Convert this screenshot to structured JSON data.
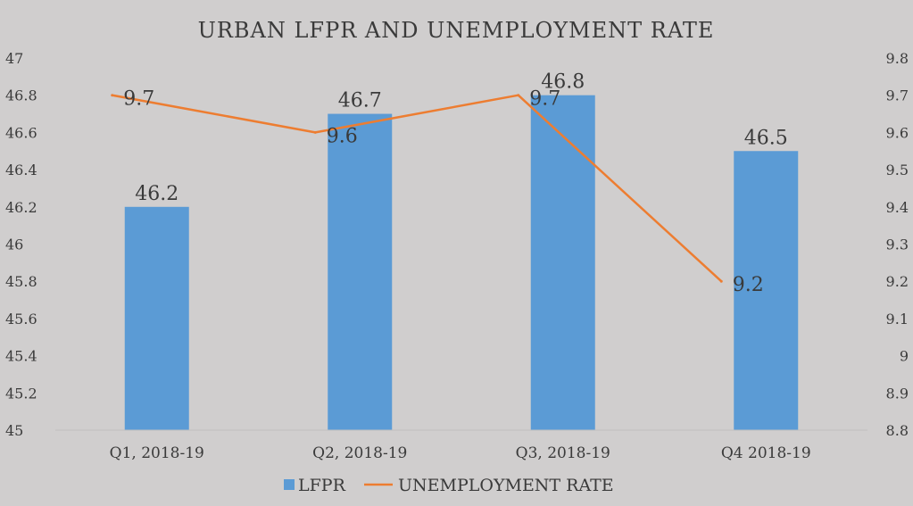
{
  "chart_data": {
    "type": "bar",
    "title": "URBAN LFPR AND UNEMPLOYMENT RATE",
    "categories": [
      "Q1, 2018-19",
      "Q2, 2018-19",
      "Q3, 2018-19",
      "Q4 2018-19"
    ],
    "series": [
      {
        "name": "LFPR",
        "type": "bar",
        "axis": "left",
        "values": [
          46.2,
          46.7,
          46.8,
          46.5
        ],
        "labels": [
          "46.2",
          "46.7",
          "46.8",
          "46.5"
        ],
        "color": "#5b9bd5"
      },
      {
        "name": "UNEMPLOYMENT RATE",
        "type": "line",
        "axis": "right",
        "values": [
          9.7,
          9.6,
          9.7,
          9.2
        ],
        "labels": [
          "9.7",
          "9.6",
          "9.7",
          "9.2"
        ],
        "color": "#ed7d31"
      }
    ],
    "y_left": {
      "min": 45,
      "max": 47,
      "ticks": [
        "47",
        "46.8",
        "46.6",
        "46.4",
        "46.2",
        "46",
        "45.8",
        "45.6",
        "45.4",
        "45.2",
        "45"
      ]
    },
    "y_right": {
      "min": 8.8,
      "max": 9.8,
      "ticks": [
        "9.8",
        "9.7",
        "9.6",
        "9.5",
        "9.4",
        "9.3",
        "9.2",
        "9.1",
        "9",
        "8.9",
        "8.8"
      ]
    },
    "grid": false,
    "legend_position": "bottom",
    "background": "#d0cece"
  }
}
